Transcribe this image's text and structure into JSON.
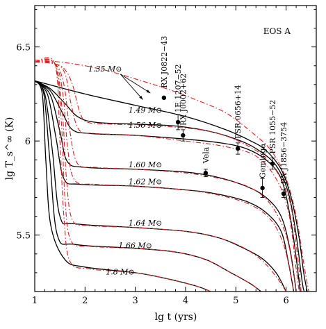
{
  "chart_data": {
    "type": "line",
    "title": "EOS A",
    "xlabel": "lg t (yrs)",
    "ylabel": "lg T_s^∞ (K)",
    "xlim": [
      1,
      6.6
    ],
    "ylim": [
      5.2,
      6.72
    ],
    "x_ticks": [
      "1",
      "2",
      "3",
      "4",
      "5",
      "6"
    ],
    "y_ticks": [
      "5.5",
      "6",
      "6.5"
    ],
    "grid": false,
    "mass_labels": [
      {
        "text": "1.35 M⊙",
        "x": 2.4,
        "y": 6.37
      },
      {
        "text": "1.49 M⊙",
        "x": 3.2,
        "y": 6.15
      },
      {
        "text": "1.56 M⊙",
        "x": 3.2,
        "y": 6.07
      },
      {
        "text": "1.60 M⊙",
        "x": 3.2,
        "y": 5.86
      },
      {
        "text": "1.62 M⊙",
        "x": 3.2,
        "y": 5.77
      },
      {
        "text": "1.64 M⊙",
        "x": 3.2,
        "y": 5.55
      },
      {
        "text": "1.66 M⊙",
        "x": 3.0,
        "y": 5.43
      },
      {
        "text": "1.8 M⊙",
        "x": 2.7,
        "y": 5.29
      }
    ],
    "series": [
      {
        "style": "solid",
        "color": "#000000",
        "points": [
          [
            1,
            6.32
          ],
          [
            2,
            6.25
          ],
          [
            3,
            6.19
          ],
          [
            4,
            6.13
          ],
          [
            4.8,
            6.06
          ],
          [
            5.3,
            6.0
          ],
          [
            5.6,
            5.95
          ],
          [
            5.9,
            5.85
          ],
          [
            6.1,
            5.7
          ],
          [
            6.25,
            5.5
          ],
          [
            6.35,
            5.3
          ],
          [
            6.42,
            5.2
          ]
        ]
      },
      {
        "style": "solid",
        "color": "#000000",
        "points": [
          [
            1,
            6.32
          ],
          [
            1.3,
            6.28
          ],
          [
            1.6,
            6.2
          ],
          [
            1.85,
            6.13
          ],
          [
            2.2,
            6.1
          ],
          [
            3,
            6.09
          ],
          [
            3.8,
            6.08
          ],
          [
            4.5,
            6.05
          ],
          [
            5,
            6.01
          ],
          [
            5.4,
            5.96
          ],
          [
            5.8,
            5.87
          ],
          [
            6.05,
            5.72
          ],
          [
            6.2,
            5.5
          ],
          [
            6.32,
            5.25
          ],
          [
            6.36,
            5.2
          ]
        ]
      },
      {
        "style": "solid",
        "color": "#000000",
        "points": [
          [
            1,
            6.32
          ],
          [
            1.3,
            6.27
          ],
          [
            1.55,
            6.15
          ],
          [
            1.75,
            6.06
          ],
          [
            2.1,
            6.04
          ],
          [
            3,
            6.03
          ],
          [
            4,
            6.01
          ],
          [
            4.7,
            5.99
          ],
          [
            5.2,
            5.96
          ],
          [
            5.6,
            5.9
          ],
          [
            5.9,
            5.8
          ],
          [
            6.08,
            5.6
          ],
          [
            6.2,
            5.38
          ],
          [
            6.28,
            5.2
          ]
        ]
      },
      {
        "style": "solid",
        "color": "#000000",
        "points": [
          [
            1,
            6.32
          ],
          [
            1.3,
            6.25
          ],
          [
            1.5,
            6.05
          ],
          [
            1.65,
            5.89
          ],
          [
            2,
            5.86
          ],
          [
            3,
            5.85
          ],
          [
            4,
            5.835
          ],
          [
            4.6,
            5.81
          ],
          [
            5.2,
            5.76
          ],
          [
            5.6,
            5.7
          ],
          [
            5.9,
            5.6
          ],
          [
            6.08,
            5.42
          ],
          [
            6.2,
            5.2
          ]
        ]
      },
      {
        "style": "solid",
        "color": "#000000",
        "points": [
          [
            1,
            6.32
          ],
          [
            1.25,
            6.25
          ],
          [
            1.42,
            6.02
          ],
          [
            1.58,
            5.8
          ],
          [
            1.9,
            5.77
          ],
          [
            3,
            5.76
          ],
          [
            4,
            5.74
          ],
          [
            4.6,
            5.72
          ],
          [
            5.2,
            5.68
          ],
          [
            5.6,
            5.62
          ],
          [
            5.9,
            5.52
          ],
          [
            6.05,
            5.35
          ],
          [
            6.15,
            5.2
          ]
        ]
      },
      {
        "style": "solid",
        "color": "#000000",
        "points": [
          [
            1,
            6.32
          ],
          [
            1.2,
            6.25
          ],
          [
            1.35,
            5.95
          ],
          [
            1.5,
            5.6
          ],
          [
            1.8,
            5.56
          ],
          [
            3,
            5.54
          ],
          [
            4,
            5.52
          ],
          [
            4.6,
            5.49
          ],
          [
            5,
            5.45
          ],
          [
            5.5,
            5.38
          ],
          [
            5.8,
            5.3
          ],
          [
            6,
            5.2
          ]
        ]
      },
      {
        "style": "solid",
        "color": "#000000",
        "points": [
          [
            1,
            6.32
          ],
          [
            1.18,
            6.25
          ],
          [
            1.3,
            5.9
          ],
          [
            1.45,
            5.5
          ],
          [
            1.8,
            5.45
          ],
          [
            3,
            5.43
          ],
          [
            3.8,
            5.41
          ],
          [
            4.4,
            5.37
          ],
          [
            4.9,
            5.3
          ],
          [
            5.3,
            5.24
          ],
          [
            5.5,
            5.2
          ]
        ]
      },
      {
        "style": "solid",
        "color": "#000000",
        "points": [
          [
            1,
            6.32
          ],
          [
            1.15,
            6.25
          ],
          [
            1.22,
            5.9
          ],
          [
            1.32,
            5.55
          ],
          [
            1.6,
            5.37
          ],
          [
            2,
            5.33
          ],
          [
            3,
            5.3
          ],
          [
            3.6,
            5.27
          ],
          [
            4.2,
            5.23
          ],
          [
            4.5,
            5.2
          ]
        ]
      },
      {
        "style": "dashdot",
        "color": "#e31a1c",
        "points": [
          [
            1,
            6.43
          ],
          [
            1.5,
            6.42
          ],
          [
            2,
            6.4
          ],
          [
            2.5,
            6.37
          ],
          [
            3,
            6.33
          ],
          [
            3.6,
            6.28
          ],
          [
            4.2,
            6.22
          ],
          [
            4.8,
            6.15
          ],
          [
            5.3,
            6.05
          ],
          [
            5.7,
            5.95
          ],
          [
            6,
            5.8
          ],
          [
            6.2,
            5.6
          ],
          [
            6.35,
            5.35
          ],
          [
            6.45,
            5.2
          ]
        ]
      },
      {
        "style": "dashdot",
        "color": "#e31a1c",
        "points": [
          [
            1,
            6.42
          ],
          [
            1.4,
            6.41
          ],
          [
            1.6,
            6.38
          ],
          [
            1.75,
            6.3
          ],
          [
            1.9,
            6.15
          ],
          [
            2.05,
            6.1
          ],
          [
            2.5,
            6.09
          ],
          [
            3.5,
            6.08
          ],
          [
            4.5,
            6.05
          ],
          [
            5.2,
            5.98
          ],
          [
            5.7,
            5.88
          ],
          [
            6.05,
            5.7
          ],
          [
            6.2,
            5.45
          ],
          [
            6.3,
            5.2
          ]
        ]
      },
      {
        "style": "dashdot",
        "color": "#e31a1c",
        "points": [
          [
            1,
            6.42
          ],
          [
            1.4,
            6.41
          ],
          [
            1.6,
            6.36
          ],
          [
            1.72,
            6.2
          ],
          [
            1.88,
            6.06
          ],
          [
            2.2,
            6.04
          ],
          [
            3,
            6.03
          ],
          [
            4,
            6.0
          ],
          [
            4.8,
            5.97
          ],
          [
            5.4,
            5.92
          ],
          [
            5.8,
            5.8
          ],
          [
            6.05,
            5.62
          ],
          [
            6.2,
            5.32
          ],
          [
            6.26,
            5.2
          ]
        ]
      },
      {
        "style": "dashdot",
        "color": "#e31a1c",
        "points": [
          [
            1,
            6.42
          ],
          [
            1.4,
            6.41
          ],
          [
            1.58,
            6.3
          ],
          [
            1.7,
            6.05
          ],
          [
            1.85,
            5.88
          ],
          [
            2.2,
            5.86
          ],
          [
            3,
            5.85
          ],
          [
            4,
            5.83
          ],
          [
            4.7,
            5.8
          ],
          [
            5.3,
            5.75
          ],
          [
            5.7,
            5.66
          ],
          [
            6,
            5.5
          ],
          [
            6.15,
            5.3
          ],
          [
            6.2,
            5.2
          ]
        ]
      },
      {
        "style": "dashdot",
        "color": "#e31a1c",
        "points": [
          [
            1,
            6.42
          ],
          [
            1.4,
            6.41
          ],
          [
            1.56,
            6.25
          ],
          [
            1.66,
            5.95
          ],
          [
            1.8,
            5.79
          ],
          [
            2.2,
            5.77
          ],
          [
            3,
            5.76
          ],
          [
            4,
            5.74
          ],
          [
            4.7,
            5.71
          ],
          [
            5.3,
            5.66
          ],
          [
            5.7,
            5.58
          ],
          [
            5.95,
            5.45
          ],
          [
            6.1,
            5.28
          ],
          [
            6.15,
            5.2
          ]
        ]
      },
      {
        "style": "dashdot",
        "color": "#e31a1c",
        "points": [
          [
            1,
            6.42
          ],
          [
            1.4,
            6.41
          ],
          [
            1.55,
            6.15
          ],
          [
            1.63,
            5.8
          ],
          [
            1.75,
            5.58
          ],
          [
            2.1,
            5.55
          ],
          [
            3,
            5.54
          ],
          [
            4,
            5.52
          ],
          [
            4.6,
            5.49
          ],
          [
            5.1,
            5.44
          ],
          [
            5.5,
            5.37
          ],
          [
            5.8,
            5.28
          ],
          [
            6,
            5.2
          ]
        ]
      },
      {
        "style": "dashdot",
        "color": "#e31a1c",
        "points": [
          [
            1,
            6.42
          ],
          [
            1.4,
            6.41
          ],
          [
            1.53,
            6.1
          ],
          [
            1.6,
            5.7
          ],
          [
            1.72,
            5.47
          ],
          [
            2.1,
            5.44
          ],
          [
            3,
            5.43
          ],
          [
            3.8,
            5.41
          ],
          [
            4.4,
            5.37
          ],
          [
            4.9,
            5.3
          ],
          [
            5.3,
            5.24
          ],
          [
            5.5,
            5.2
          ]
        ]
      },
      {
        "style": "dashdot",
        "color": "#e31a1c",
        "points": [
          [
            1,
            6.42
          ],
          [
            1.4,
            6.41
          ],
          [
            1.5,
            6.0
          ],
          [
            1.58,
            5.6
          ],
          [
            1.7,
            5.36
          ],
          [
            2.1,
            5.32
          ],
          [
            3,
            5.3
          ],
          [
            3.6,
            5.27
          ],
          [
            4.2,
            5.23
          ],
          [
            4.5,
            5.2
          ]
        ]
      }
    ],
    "observations": [
      {
        "name": "RX J0822−43",
        "x": 3.57,
        "y": 6.23,
        "yerr": 0.0
      },
      {
        "name": "1E 1207−52",
        "x": 3.85,
        "y": 6.1,
        "yerr": 0.04
      },
      {
        "name": "RX J0002+62",
        "x": 3.95,
        "y": 6.03,
        "yerr": 0.03
      },
      {
        "name": "Vela",
        "x": 4.4,
        "y": 5.83,
        "yerr": 0.02
      },
      {
        "name": "PSR 0656+14",
        "x": 5.04,
        "y": 5.96,
        "yerr": 0.03
      },
      {
        "name": "Geminga",
        "x": 5.53,
        "y": 5.75,
        "yerr": 0.05
      },
      {
        "name": "PSR 1055−52",
        "x": 5.73,
        "y": 5.88,
        "yerr": 0.03
      },
      {
        "name": "RX J1856−3754",
        "x": 5.95,
        "y": 5.72,
        "yerr": 0.02
      }
    ]
  }
}
